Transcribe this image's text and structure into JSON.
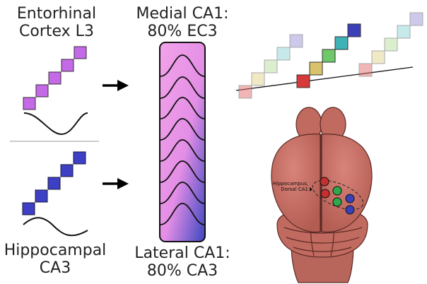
{
  "labels": {
    "ec_line1": "Entorhinal",
    "ec_line2": "Cortex L3",
    "ca3_line1": "Hippocampal",
    "ca3_line2": "CA3",
    "medial_line1": "Medial CA1:",
    "medial_line2": "80% EC3",
    "lateral_line1": "Lateral CA1:",
    "lateral_line2": "80% CA3",
    "brain_line1": "Hippocampus,",
    "brain_line2": "Dorsal CA1"
  },
  "colors": {
    "ec_squares": "#c56ae6",
    "ca3_squares": "#3d3fc4",
    "gradient_top": "#ef9fe6",
    "gradient_bottom": "#3b46c0",
    "brain": "#c16a5f",
    "recording_dot_red": "#c62f2f",
    "recording_dot_green": "#2da84a",
    "recording_dot_blue": "#3b40b8"
  },
  "icons": [
    "arrow-right-icon",
    "arrow-right-icon",
    "brain-illustration",
    "sine-wave-icon"
  ]
}
